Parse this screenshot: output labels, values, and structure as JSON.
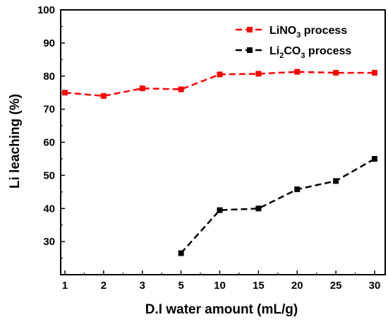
{
  "chart_data": {
    "type": "line",
    "xlabel": "D.I water amount (mL/g)",
    "ylabel": "Li leaching (%)",
    "categories": [
      "1",
      "2",
      "3",
      "5",
      "10",
      "15",
      "20",
      "25",
      "30"
    ],
    "ylim": [
      20,
      100
    ],
    "yticks": [
      30,
      40,
      50,
      60,
      70,
      80,
      90,
      100
    ],
    "grid": false,
    "legend_position": "top-right",
    "series": [
      {
        "name": "LiNO3 process",
        "name_parts": [
          "LiNO",
          "3",
          " process"
        ],
        "color": "#ff0000",
        "values": [
          75,
          74,
          76.3,
          76,
          80.5,
          80.7,
          81.3,
          81,
          81
        ]
      },
      {
        "name": "Li2CO3 process",
        "name_parts": [
          "Li",
          "2",
          "CO",
          "3",
          " process"
        ],
        "color": "#000000",
        "values": [
          null,
          null,
          null,
          26.5,
          39.5,
          40,
          45.8,
          48.3,
          55
        ]
      }
    ]
  }
}
